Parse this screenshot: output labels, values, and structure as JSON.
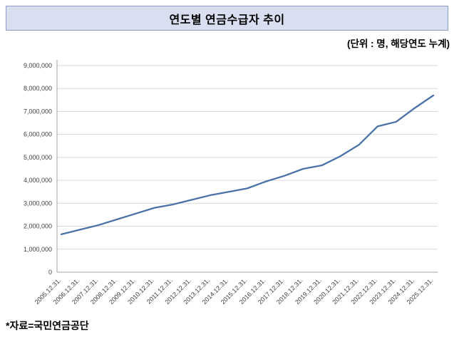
{
  "header": {
    "title": "연도별 연금수급자 추이",
    "unit_note": "(단위 : 명, 해당연도 누계)"
  },
  "footer": {
    "source": "*자료=국민연금공단"
  },
  "chart_data": {
    "type": "line",
    "title": "연도별 연금수급자 추이",
    "xlabel": "",
    "ylabel": "",
    "legend": "none",
    "grid": true,
    "ylim": [
      0,
      9000000
    ],
    "ytick_step": 1000000,
    "line_color": "#4a72a8",
    "grid_color": "#d9d9d9",
    "axis_color": "#a6a6a6",
    "x": [
      "2005.12.31.",
      "2006.12.31.",
      "2007.12.31.",
      "2008.12.31.",
      "2009.12.31.",
      "2010.12.31.",
      "2011.12.31.",
      "2012.12.31.",
      "2013.12.31.",
      "2014.12.31.",
      "2015.12.31.",
      "2016.12.31.",
      "2017.12.31.",
      "2018.12.31.",
      "2019.12.31.",
      "2020.12.31.",
      "2021.12.31.",
      "2022.12.31.",
      "2023.12.31.",
      "2024.12.31.",
      "2025.12.31."
    ],
    "values": [
      1650000,
      1850000,
      2050000,
      2300000,
      2550000,
      2800000,
      2950000,
      3150000,
      3350000,
      3500000,
      3650000,
      3950000,
      4200000,
      4500000,
      4650000,
      5050000,
      5550000,
      6350000,
      6550000,
      7150000,
      7700000
    ]
  }
}
